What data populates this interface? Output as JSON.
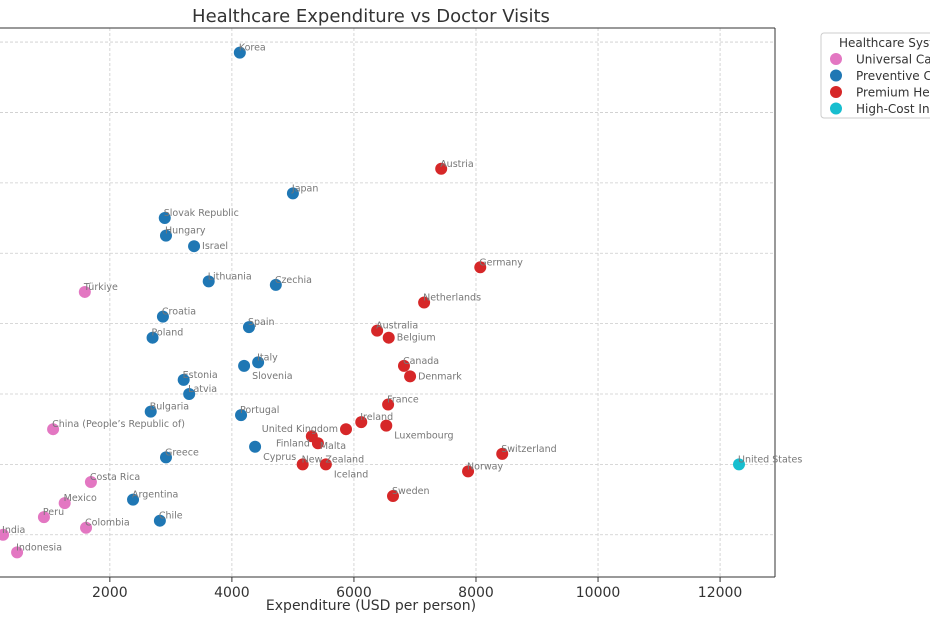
{
  "chart_data": {
    "type": "scatter",
    "title": "Healthcare Expenditure vs Doctor Visits",
    "xlabel": "Expenditure (USD per person)",
    "ylabel": "",
    "xlim": [
      200,
      12900
    ],
    "ylim": [
      0.8,
      16.4
    ],
    "xticks": [
      2000,
      4000,
      6000,
      8000,
      10000,
      12000
    ],
    "yticks": [
      2,
      4,
      6,
      8,
      10,
      12,
      14,
      16
    ],
    "grid": true,
    "legend": {
      "title": "Healthcare Syste",
      "placement": "outside-right",
      "entries": [
        {
          "key": "universal",
          "label": "Universal Car",
          "color": "#e377c2"
        },
        {
          "key": "preventive",
          "label": "Preventive Ca",
          "color": "#1f77b4"
        },
        {
          "key": "premium",
          "label": "Premium Hea",
          "color": "#d62728"
        },
        {
          "key": "highcost",
          "label": "High-Cost Inn",
          "color": "#17becf"
        }
      ]
    },
    "points": [
      {
        "label": "Korea",
        "x": 4130,
        "y": 15.7,
        "group": "preventive"
      },
      {
        "label": "Austria",
        "x": 7430,
        "y": 12.4,
        "group": "premium"
      },
      {
        "label": "Japan",
        "x": 5000,
        "y": 11.7,
        "group": "preventive"
      },
      {
        "label": "Slovak Republic",
        "x": 2900,
        "y": 11.0,
        "group": "preventive"
      },
      {
        "label": "Hungary",
        "x": 2920,
        "y": 10.5,
        "group": "preventive"
      },
      {
        "label": "Israel",
        "x": 3380,
        "y": 10.2,
        "group": "preventive"
      },
      {
        "label": "Germany",
        "x": 8070,
        "y": 9.6,
        "group": "premium"
      },
      {
        "label": "Lithuania",
        "x": 3620,
        "y": 9.2,
        "group": "preventive"
      },
      {
        "label": "Czechia",
        "x": 4720,
        "y": 9.1,
        "group": "preventive"
      },
      {
        "label": "Türkiye",
        "x": 1590,
        "y": 8.9,
        "group": "universal"
      },
      {
        "label": "Netherlands",
        "x": 7150,
        "y": 8.6,
        "group": "premium"
      },
      {
        "label": "Croatia",
        "x": 2870,
        "y": 8.2,
        "group": "preventive"
      },
      {
        "label": "Spain",
        "x": 4280,
        "y": 7.9,
        "group": "preventive"
      },
      {
        "label": "Australia",
        "x": 6380,
        "y": 7.8,
        "group": "premium"
      },
      {
        "label": "Poland",
        "x": 2700,
        "y": 7.6,
        "group": "preventive"
      },
      {
        "label": "Belgium",
        "x": 6570,
        "y": 7.6,
        "group": "premium"
      },
      {
        "label": "Italy",
        "x": 4430,
        "y": 6.9,
        "group": "preventive"
      },
      {
        "label": "Slovenia",
        "x": 4200,
        "y": 6.8,
        "group": "preventive"
      },
      {
        "label": "Canada",
        "x": 6820,
        "y": 6.8,
        "group": "premium"
      },
      {
        "label": "Denmark",
        "x": 6920,
        "y": 6.5,
        "group": "premium"
      },
      {
        "label": "Estonia",
        "x": 3210,
        "y": 6.4,
        "group": "preventive"
      },
      {
        "label": "Latvia",
        "x": 3300,
        "y": 6.0,
        "group": "preventive"
      },
      {
        "label": "France",
        "x": 6560,
        "y": 5.7,
        "group": "premium"
      },
      {
        "label": "Bulgaria",
        "x": 2670,
        "y": 5.5,
        "group": "preventive"
      },
      {
        "label": "Portugal",
        "x": 4150,
        "y": 5.4,
        "group": "preventive"
      },
      {
        "label": "Ireland",
        "x": 6120,
        "y": 5.2,
        "group": "premium"
      },
      {
        "label": "Luxembourg",
        "x": 6530,
        "y": 5.1,
        "group": "premium"
      },
      {
        "label": "United Kingdom",
        "x": 5870,
        "y": 5.0,
        "group": "premium"
      },
      {
        "label": "China (People’s Republic of)",
        "x": 1070,
        "y": 5.0,
        "group": "universal"
      },
      {
        "label": "Malta",
        "x": 5310,
        "y": 4.8,
        "group": "premium"
      },
      {
        "label": "Finland",
        "x": 5410,
        "y": 4.6,
        "group": "premium"
      },
      {
        "label": "Cyprus",
        "x": 4380,
        "y": 4.5,
        "group": "preventive"
      },
      {
        "label": "Switzerland",
        "x": 8430,
        "y": 4.3,
        "group": "premium"
      },
      {
        "label": "Greece",
        "x": 2920,
        "y": 4.2,
        "group": "preventive"
      },
      {
        "label": "New Zealand",
        "x": 5160,
        "y": 4.0,
        "group": "premium"
      },
      {
        "label": "Iceland",
        "x": 5540,
        "y": 4.0,
        "group": "premium"
      },
      {
        "label": "United States",
        "x": 12310,
        "y": 4.0,
        "group": "highcost"
      },
      {
        "label": "Norway",
        "x": 7870,
        "y": 3.8,
        "group": "premium"
      },
      {
        "label": "Costa Rica",
        "x": 1690,
        "y": 3.5,
        "group": "universal"
      },
      {
        "label": "Sweden",
        "x": 6640,
        "y": 3.1,
        "group": "premium"
      },
      {
        "label": "Argentina",
        "x": 2380,
        "y": 3.0,
        "group": "preventive"
      },
      {
        "label": "Mexico",
        "x": 1260,
        "y": 2.9,
        "group": "universal"
      },
      {
        "label": "Peru",
        "x": 920,
        "y": 2.5,
        "group": "universal"
      },
      {
        "label": "Chile",
        "x": 2820,
        "y": 2.4,
        "group": "preventive"
      },
      {
        "label": "Colombia",
        "x": 1610,
        "y": 2.2,
        "group": "universal"
      },
      {
        "label": "India",
        "x": 250,
        "y": 2.0,
        "group": "universal"
      },
      {
        "label": "Indonesia",
        "x": 480,
        "y": 1.5,
        "group": "universal"
      }
    ]
  }
}
